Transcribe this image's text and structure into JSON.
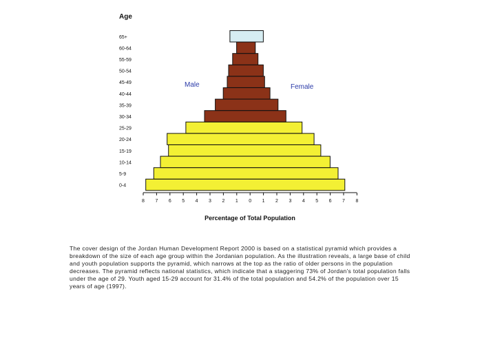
{
  "chart_data": {
    "type": "bar",
    "title": "",
    "ylabel": "Age",
    "xlabel": "Percentage of Total Population",
    "categories": [
      "0-4",
      "5-9",
      "10-14",
      "15-19",
      "20-24",
      "25-29",
      "30-34",
      "35-39",
      "40-44",
      "45-49",
      "50-54",
      "55-59",
      "60-64",
      "65+"
    ],
    "xlim": [
      -8,
      8
    ],
    "xticks": [
      "8",
      "7",
      "6",
      "5",
      "4",
      "3",
      "2",
      "1",
      "0",
      "1",
      "2",
      "3",
      "4",
      "5",
      "6",
      "7",
      "8"
    ],
    "grid": false,
    "orientation": "horizontal",
    "series": [
      {
        "name": "Male",
        "side": "left",
        "values": [
          7.8,
          7.2,
          6.7,
          6.1,
          6.2,
          4.8,
          3.4,
          2.6,
          2.0,
          1.7,
          1.6,
          1.3,
          1.0,
          1.5
        ]
      },
      {
        "name": "Female",
        "side": "right",
        "values": [
          7.1,
          6.6,
          6.0,
          5.3,
          4.8,
          3.9,
          2.7,
          2.1,
          1.5,
          1.1,
          1.0,
          0.6,
          0.4,
          1.0
        ]
      }
    ],
    "colors": {
      "youth": "#f3f034",
      "middle": "#8b3218",
      "elderly": "#d6edf2",
      "label": "#2a3aa8"
    }
  },
  "caption": "The cover design of the Jordan Human Development Report 2000 is based on a statistical pyramid which provides a breakdown of the size of each age group within the Jordanian population. As the illustration reveals, a large base of child and youth population supports the pyramid, which narrows at the top as the ratio of older persons in the population decreases. The pyramid reflects national statistics, which indicate that a staggering 73% of Jordan's total population falls under the age of 29. Youth aged 15-29 account for 31.4% of the total population and 54.2% of the population over 15 years of age (1997)."
}
